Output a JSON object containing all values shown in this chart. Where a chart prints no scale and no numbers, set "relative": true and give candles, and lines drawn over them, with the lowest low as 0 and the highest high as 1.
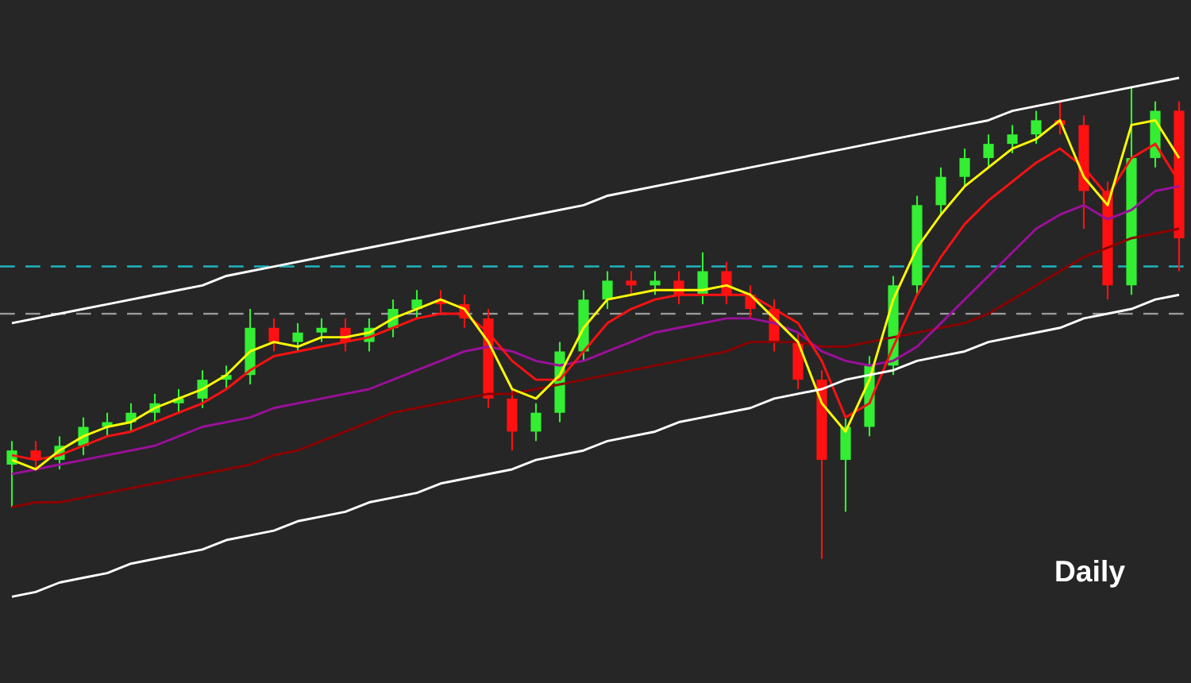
{
  "chart_data": {
    "type": "candlestick",
    "relative": true,
    "categories": [
      null,
      null,
      null,
      null,
      null,
      null,
      null,
      null,
      null,
      null,
      null,
      null,
      null,
      null,
      null,
      null,
      null,
      null,
      null,
      null,
      null,
      null,
      null,
      null,
      null,
      null,
      null,
      null,
      null,
      null,
      null,
      null,
      null,
      null,
      null,
      null,
      null,
      null,
      null,
      null,
      null,
      null,
      null,
      null,
      null,
      null,
      null,
      null,
      null,
      null
    ],
    "ohlc": [
      [
        0.2,
        0.25,
        0.11,
        0.23
      ],
      [
        0.23,
        0.25,
        0.19,
        0.21
      ],
      [
        0.21,
        0.26,
        0.19,
        0.24
      ],
      [
        0.24,
        0.3,
        0.22,
        0.28
      ],
      [
        0.28,
        0.31,
        0.26,
        0.29
      ],
      [
        0.29,
        0.33,
        0.27,
        0.31
      ],
      [
        0.31,
        0.35,
        0.29,
        0.33
      ],
      [
        0.33,
        0.36,
        0.31,
        0.34
      ],
      [
        0.34,
        0.4,
        0.32,
        0.38
      ],
      [
        0.38,
        0.41,
        0.36,
        0.39
      ],
      [
        0.39,
        0.53,
        0.37,
        0.49
      ],
      [
        0.49,
        0.51,
        0.44,
        0.46
      ],
      [
        0.46,
        0.5,
        0.44,
        0.48
      ],
      [
        0.48,
        0.51,
        0.46,
        0.49
      ],
      [
        0.49,
        0.51,
        0.44,
        0.46
      ],
      [
        0.46,
        0.51,
        0.44,
        0.49
      ],
      [
        0.49,
        0.55,
        0.47,
        0.53
      ],
      [
        0.53,
        0.57,
        0.51,
        0.55
      ],
      [
        0.55,
        0.57,
        0.52,
        0.54
      ],
      [
        0.54,
        0.56,
        0.49,
        0.51
      ],
      [
        0.51,
        0.53,
        0.32,
        0.34
      ],
      [
        0.34,
        0.36,
        0.23,
        0.27
      ],
      [
        0.27,
        0.33,
        0.25,
        0.31
      ],
      [
        0.31,
        0.46,
        0.29,
        0.44
      ],
      [
        0.44,
        0.57,
        0.42,
        0.55
      ],
      [
        0.55,
        0.61,
        0.53,
        0.59
      ],
      [
        0.59,
        0.61,
        0.56,
        0.58
      ],
      [
        0.58,
        0.61,
        0.56,
        0.59
      ],
      [
        0.59,
        0.61,
        0.54,
        0.56
      ],
      [
        0.56,
        0.65,
        0.54,
        0.61
      ],
      [
        0.61,
        0.63,
        0.54,
        0.56
      ],
      [
        0.56,
        0.58,
        0.51,
        0.53
      ],
      [
        0.53,
        0.55,
        0.44,
        0.46
      ],
      [
        0.46,
        0.48,
        0.36,
        0.38
      ],
      [
        0.38,
        0.4,
        0.0,
        0.21
      ],
      [
        0.21,
        0.3,
        0.1,
        0.28
      ],
      [
        0.28,
        0.43,
        0.26,
        0.41
      ],
      [
        0.41,
        0.6,
        0.39,
        0.58
      ],
      [
        0.58,
        0.77,
        0.56,
        0.75
      ],
      [
        0.75,
        0.83,
        0.73,
        0.81
      ],
      [
        0.81,
        0.87,
        0.79,
        0.85
      ],
      [
        0.85,
        0.9,
        0.83,
        0.88
      ],
      [
        0.88,
        0.92,
        0.86,
        0.9
      ],
      [
        0.9,
        0.95,
        0.88,
        0.93
      ],
      [
        0.93,
        0.97,
        0.9,
        0.92
      ],
      [
        0.92,
        0.94,
        0.7,
        0.78
      ],
      [
        0.78,
        0.8,
        0.55,
        0.58
      ],
      [
        0.58,
        1.0,
        0.56,
        0.85
      ],
      [
        0.85,
        0.97,
        0.83,
        0.95
      ],
      [
        0.95,
        0.97,
        0.61,
        0.68
      ]
    ],
    "colors": [
      "#33ee33",
      "#ff1111",
      "#33ee33",
      "#33ee33",
      "#33ee33",
      "#33ee33",
      "#33ee33",
      "#33ee33",
      "#33ee33",
      "#33ee33",
      "#33ee33",
      "#ff1111",
      "#33ee33",
      "#33ee33",
      "#ff1111",
      "#33ee33",
      "#33ee33",
      "#33ee33",
      "#ff1111",
      "#ff1111",
      "#ff1111",
      "#ff1111",
      "#33ee33",
      "#33ee33",
      "#33ee33",
      "#33ee33",
      "#ff1111",
      "#33ee33",
      "#ff1111",
      "#33ee33",
      "#ff1111",
      "#ff1111",
      "#ff1111",
      "#ff1111",
      "#ff1111",
      "#33ee33",
      "#33ee33",
      "#33ee33",
      "#33ee33",
      "#33ee33",
      "#33ee33",
      "#33ee33",
      "#33ee33",
      "#33ee33",
      "#ff1111",
      "#ff1111",
      "#ff1111",
      "#33ee33",
      "#33ee33",
      "#ff1111"
    ],
    "series": [
      {
        "type": "line",
        "color": "#8b0000",
        "values": [
          0.11,
          0.12,
          0.12,
          0.13,
          0.14,
          0.15,
          0.16,
          0.17,
          0.18,
          0.19,
          0.2,
          0.22,
          0.23,
          0.25,
          0.27,
          0.29,
          0.31,
          0.32,
          0.33,
          0.34,
          0.35,
          0.35,
          0.36,
          0.37,
          0.38,
          0.39,
          0.4,
          0.41,
          0.42,
          0.43,
          0.44,
          0.46,
          0.46,
          0.46,
          0.45,
          0.45,
          0.46,
          0.47,
          0.48,
          0.49,
          0.5,
          0.52,
          0.55,
          0.58,
          0.61,
          0.64,
          0.66,
          0.68,
          0.69,
          0.7
        ]
      },
      {
        "type": "line",
        "color": "#9b109b",
        "values": [
          0.18,
          0.19,
          0.2,
          0.21,
          0.22,
          0.23,
          0.24,
          0.26,
          0.28,
          0.29,
          0.3,
          0.32,
          0.33,
          0.34,
          0.35,
          0.36,
          0.38,
          0.4,
          0.42,
          0.44,
          0.45,
          0.44,
          0.42,
          0.41,
          0.42,
          0.44,
          0.46,
          0.48,
          0.49,
          0.5,
          0.51,
          0.51,
          0.5,
          0.48,
          0.44,
          0.42,
          0.41,
          0.42,
          0.45,
          0.5,
          0.55,
          0.6,
          0.65,
          0.7,
          0.73,
          0.75,
          0.72,
          0.74,
          0.78,
          0.79
        ]
      },
      {
        "type": "line",
        "color": "#ff1111",
        "values": [
          0.22,
          0.21,
          0.22,
          0.24,
          0.26,
          0.27,
          0.29,
          0.31,
          0.33,
          0.36,
          0.4,
          0.43,
          0.44,
          0.45,
          0.46,
          0.47,
          0.49,
          0.51,
          0.52,
          0.52,
          0.48,
          0.42,
          0.38,
          0.38,
          0.44,
          0.5,
          0.53,
          0.55,
          0.56,
          0.56,
          0.56,
          0.56,
          0.53,
          0.5,
          0.42,
          0.3,
          0.33,
          0.45,
          0.56,
          0.64,
          0.71,
          0.76,
          0.8,
          0.84,
          0.87,
          0.83,
          0.77,
          0.85,
          0.88,
          0.8
        ]
      },
      {
        "type": "line",
        "color": "#ffff00",
        "values": [
          0.21,
          0.19,
          0.23,
          0.26,
          0.28,
          0.29,
          0.32,
          0.34,
          0.36,
          0.39,
          0.44,
          0.46,
          0.45,
          0.47,
          0.47,
          0.48,
          0.51,
          0.53,
          0.55,
          0.53,
          0.46,
          0.36,
          0.34,
          0.39,
          0.49,
          0.55,
          0.56,
          0.57,
          0.57,
          0.57,
          0.58,
          0.56,
          0.51,
          0.46,
          0.33,
          0.27,
          0.38,
          0.55,
          0.66,
          0.73,
          0.79,
          0.83,
          0.87,
          0.89,
          0.93,
          0.81,
          0.75,
          0.92,
          0.93,
          0.85
        ]
      },
      {
        "type": "line",
        "color": "#ffffff",
        "values": [
          0.5,
          0.51,
          0.52,
          0.53,
          0.54,
          0.55,
          0.56,
          0.57,
          0.58,
          0.6,
          0.61,
          0.62,
          0.63,
          0.64,
          0.65,
          0.66,
          0.67,
          0.68,
          0.69,
          0.7,
          0.71,
          0.72,
          0.73,
          0.74,
          0.75,
          0.77,
          0.78,
          0.79,
          0.8,
          0.81,
          0.82,
          0.83,
          0.84,
          0.85,
          0.86,
          0.87,
          0.88,
          0.89,
          0.9,
          0.91,
          0.92,
          0.93,
          0.95,
          0.96,
          0.97,
          0.98,
          0.99,
          1.0,
          1.01,
          1.02
        ]
      },
      {
        "type": "line",
        "color": "#ffffff",
        "values": [
          -0.08,
          -0.07,
          -0.05,
          -0.04,
          -0.03,
          -0.01,
          0.0,
          0.01,
          0.02,
          0.04,
          0.05,
          0.06,
          0.08,
          0.09,
          0.1,
          0.12,
          0.13,
          0.14,
          0.16,
          0.17,
          0.18,
          0.19,
          0.21,
          0.22,
          0.23,
          0.25,
          0.26,
          0.27,
          0.29,
          0.3,
          0.31,
          0.32,
          0.34,
          0.35,
          0.36,
          0.38,
          0.39,
          0.4,
          0.42,
          0.43,
          0.44,
          0.46,
          0.47,
          0.48,
          0.49,
          0.51,
          0.52,
          0.53,
          0.55,
          0.56
        ]
      }
    ],
    "ref_lines": [
      {
        "axis": "y",
        "value": 0.62,
        "color": "#1fb5c0",
        "line_style": "dashed"
      },
      {
        "axis": "y",
        "value": 0.52,
        "color": "#9a9a9a",
        "line_style": "dashed"
      }
    ],
    "annotations": [
      "Daily"
    ]
  }
}
